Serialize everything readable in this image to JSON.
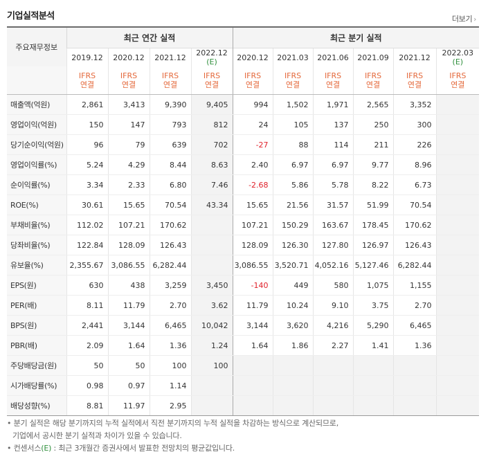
{
  "title": "기업실적분석",
  "more_label": "더보기",
  "header": {
    "row_label": "주요재무정보",
    "annual_group": "최근 연간 실적",
    "quarter_group": "최근 분기 실적",
    "annual_periods": [
      "2019.12",
      "2020.12",
      "2021.12",
      "2022.12"
    ],
    "quarter_periods": [
      "2020.12",
      "2021.03",
      "2021.06",
      "2021.09",
      "2021.12",
      "2022.03"
    ],
    "estimate_mark": "(E)",
    "ifrs_label": "IFRS",
    "consolidated_label": "연결"
  },
  "rows": [
    {
      "label": "매출액(억원)",
      "annual": [
        "2,861",
        "3,413",
        "9,390",
        "9,405"
      ],
      "quarter": [
        "994",
        "1,502",
        "1,971",
        "2,565",
        "3,352",
        ""
      ]
    },
    {
      "label": "영업이익(억원)",
      "annual": [
        "150",
        "147",
        "793",
        "812"
      ],
      "quarter": [
        "24",
        "105",
        "137",
        "250",
        "300",
        ""
      ]
    },
    {
      "label": "당기순이익(억원)",
      "annual": [
        "96",
        "79",
        "639",
        "702"
      ],
      "quarter": [
        "-27",
        "88",
        "114",
        "211",
        "226",
        ""
      ]
    },
    {
      "label": "영업이익률(%)",
      "annual": [
        "5.24",
        "4.29",
        "8.44",
        "8.63"
      ],
      "quarter": [
        "2.40",
        "6.97",
        "6.97",
        "9.77",
        "8.96",
        ""
      ]
    },
    {
      "label": "순이익률(%)",
      "annual": [
        "3.34",
        "2.33",
        "6.80",
        "7.46"
      ],
      "quarter": [
        "-2.68",
        "5.86",
        "5.78",
        "8.22",
        "6.73",
        ""
      ]
    },
    {
      "label": "ROE(%)",
      "annual": [
        "30.61",
        "15.65",
        "70.54",
        "43.34"
      ],
      "quarter": [
        "15.65",
        "21.56",
        "31.57",
        "51.99",
        "70.54",
        ""
      ]
    },
    {
      "label": "부채비율(%)",
      "annual": [
        "112.02",
        "107.21",
        "170.62",
        ""
      ],
      "quarter": [
        "107.21",
        "150.29",
        "163.67",
        "178.45",
        "170.62",
        ""
      ]
    },
    {
      "label": "당좌비율(%)",
      "annual": [
        "122.84",
        "128.09",
        "126.43",
        ""
      ],
      "quarter": [
        "128.09",
        "126.30",
        "127.80",
        "126.97",
        "126.43",
        ""
      ]
    },
    {
      "label": "유보율(%)",
      "annual": [
        "2,355.67",
        "3,086.55",
        "6,282.44",
        ""
      ],
      "quarter": [
        "3,086.55",
        "3,520.71",
        "4,052.16",
        "5,127.46",
        "6,282.44",
        ""
      ]
    },
    {
      "label": "EPS(원)",
      "annual": [
        "630",
        "438",
        "3,259",
        "3,450"
      ],
      "quarter": [
        "-140",
        "449",
        "580",
        "1,075",
        "1,155",
        ""
      ]
    },
    {
      "label": "PER(배)",
      "annual": [
        "8.11",
        "11.79",
        "2.70",
        "3.62"
      ],
      "quarter": [
        "11.79",
        "10.24",
        "9.10",
        "3.75",
        "2.70",
        ""
      ]
    },
    {
      "label": "BPS(원)",
      "annual": [
        "2,441",
        "3,144",
        "6,465",
        "10,042"
      ],
      "quarter": [
        "3,144",
        "3,620",
        "4,216",
        "5,290",
        "6,465",
        ""
      ]
    },
    {
      "label": "PBR(배)",
      "annual": [
        "2.09",
        "1.64",
        "1.36",
        "1.24"
      ],
      "quarter": [
        "1.64",
        "1.86",
        "2.27",
        "1.41",
        "1.36",
        ""
      ]
    },
    {
      "label": "주당배당금(원)",
      "annual": [
        "50",
        "50",
        "100",
        "100"
      ],
      "quarter": [
        "",
        "",
        "",
        "",
        "",
        ""
      ]
    },
    {
      "label": "시가배당률(%)",
      "annual": [
        "0.98",
        "0.97",
        "1.14",
        ""
      ],
      "quarter": [
        "",
        "",
        "",
        "",
        "",
        ""
      ]
    },
    {
      "label": "배당성향(%)",
      "annual": [
        "8.81",
        "11.97",
        "2.95",
        ""
      ],
      "quarter": [
        "",
        "",
        "",
        "",
        "",
        ""
      ]
    }
  ],
  "notes": {
    "line1": "분기 실적은 해당 분기까지의 누적 실적에서 직전 분기까지의 누적 실적을 차감하는 방식으로 계산되므로,",
    "line2": "기업에서 공시한 분기 실적과 차이가 있을 수 있습니다.",
    "line3_prefix": "컨센서스",
    "line3_mark": "(E)",
    "line3_suffix": " : 최근 3개월간 증권사에서 발표한 전망치의 평균값입니다."
  }
}
